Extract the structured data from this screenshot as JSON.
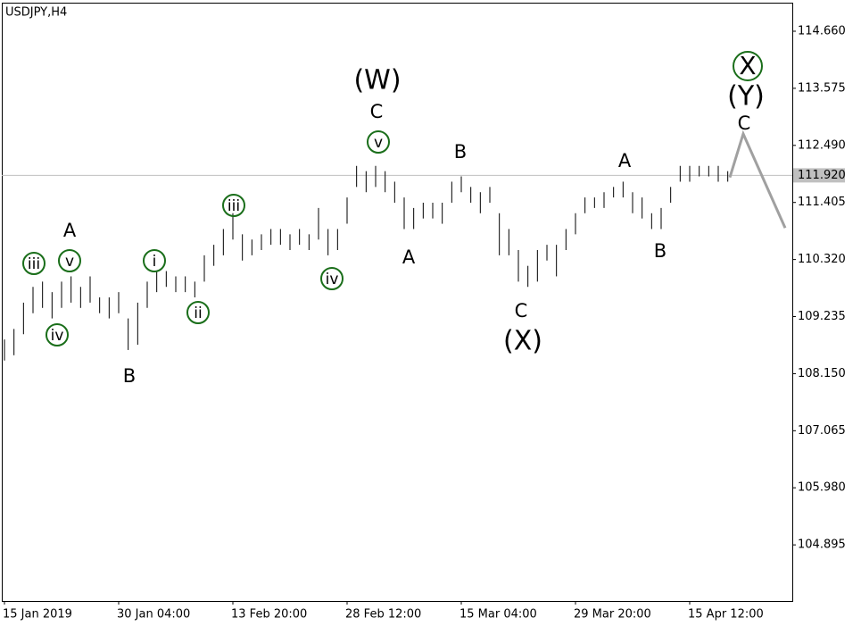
{
  "chart_data": {
    "type": "hilo",
    "title": "USDJPY,H4",
    "categories": [
      "15 Jan 2019",
      null,
      null,
      null,
      null,
      null,
      null,
      null,
      null,
      null,
      null,
      null,
      "30 Jan 04:00",
      null,
      null,
      null,
      null,
      null,
      null,
      null,
      null,
      null,
      null,
      null,
      "13 Feb 20:00",
      null,
      null,
      null,
      null,
      null,
      null,
      null,
      null,
      null,
      null,
      null,
      "28 Feb 12:00",
      null,
      null,
      null,
      null,
      null,
      null,
      null,
      null,
      null,
      null,
      null,
      "15 Mar 04:00",
      null,
      null,
      null,
      null,
      null,
      null,
      null,
      null,
      null,
      null,
      null,
      "29 Mar 20:00",
      null,
      null,
      null,
      null,
      null,
      null,
      null,
      null,
      null,
      null,
      null,
      "15 Apr 12:00",
      null,
      null,
      null,
      null
    ],
    "highs": [
      108.8,
      109.0,
      109.5,
      109.8,
      109.9,
      109.7,
      109.9,
      110.0,
      109.8,
      110.0,
      109.6,
      109.6,
      109.7,
      109.2,
      109.5,
      109.9,
      110.1,
      110.1,
      110.0,
      110.0,
      109.9,
      110.4,
      110.6,
      110.9,
      111.2,
      110.8,
      110.7,
      110.8,
      110.9,
      110.9,
      110.8,
      110.9,
      110.8,
      111.3,
      110.9,
      110.9,
      111.5,
      112.1,
      112.0,
      112.1,
      112.0,
      111.8,
      111.5,
      111.3,
      111.4,
      111.4,
      111.4,
      111.8,
      111.9,
      111.7,
      111.6,
      111.7,
      111.2,
      110.9,
      110.5,
      110.2,
      110.5,
      110.6,
      110.6,
      110.9,
      111.2,
      111.5,
      111.5,
      111.6,
      111.7,
      111.8,
      111.6,
      111.5,
      111.2,
      111.3,
      111.7,
      112.1,
      112.1,
      112.1,
      112.1,
      112.1,
      112.0
    ],
    "lows": [
      108.4,
      108.5,
      108.9,
      109.3,
      109.4,
      109.2,
      109.4,
      109.5,
      109.4,
      109.5,
      109.3,
      109.2,
      109.3,
      108.6,
      108.7,
      109.4,
      109.7,
      109.8,
      109.7,
      109.7,
      109.6,
      109.9,
      110.2,
      110.4,
      110.7,
      110.3,
      110.4,
      110.5,
      110.6,
      110.6,
      110.5,
      110.6,
      110.5,
      110.7,
      110.4,
      110.5,
      111.0,
      111.7,
      111.6,
      111.7,
      111.6,
      111.4,
      110.9,
      110.9,
      111.1,
      111.1,
      111.0,
      111.4,
      111.6,
      111.4,
      111.2,
      111.4,
      110.4,
      110.4,
      109.9,
      109.8,
      109.9,
      110.3,
      110.0,
      110.5,
      110.8,
      111.2,
      111.3,
      111.3,
      111.5,
      111.5,
      111.2,
      111.1,
      110.9,
      110.9,
      111.4,
      111.8,
      111.8,
      111.9,
      111.9,
      111.8,
      111.8
    ],
    "color": "#000000",
    "forecast": {
      "values": [
        111.88,
        112.71,
        110.92
      ],
      "color": "#a0a0a0"
    },
    "current_price": {
      "value": 111.92,
      "label": "111.920",
      "color": "#c0c0c0"
    },
    "ylim": [
      103.828,
      115.203
    ],
    "yticks": [
      {
        "value": 114.66,
        "label": "114.660"
      },
      113.575,
      {
        "value": 112.49,
        "label": "112.490"
      },
      111.405,
      {
        "value": 110.32,
        "label": "110.320"
      },
      109.235,
      {
        "value": 108.15,
        "label": "108.150"
      },
      107.065,
      {
        "value": 105.98,
        "label": "105.980"
      },
      104.895
    ],
    "annotations": [
      {
        "text": "iii",
        "color": "#1a6e1a",
        "circle": true
      },
      {
        "text": "v",
        "color": "#1a6e1a",
        "circle": true
      },
      {
        "text": "A",
        "color": "#7a0a0a",
        "circle": false
      },
      {
        "text": "iv",
        "color": "#1a6e1a",
        "circle": true
      },
      {
        "text": "B",
        "color": "#7a0a0a",
        "circle": false
      },
      {
        "text": "i",
        "color": "#1a6e1a",
        "circle": true
      },
      {
        "text": "ii",
        "color": "#1a6e1a",
        "circle": true
      },
      {
        "text": "iii",
        "color": "#1a6e1a",
        "circle": true
      },
      {
        "text": "iv",
        "color": "#1a6e1a",
        "circle": true
      },
      {
        "text": "v",
        "color": "#1a6e1a",
        "circle": true
      },
      {
        "text": "C",
        "color": "#7a0a0a",
        "circle": false
      },
      {
        "text": "(W)",
        "color": "#1a1a6e",
        "circle": false
      },
      {
        "text": "A",
        "color": "#7a0a0a",
        "circle": false
      },
      {
        "text": "B",
        "color": "#7a0a0a",
        "circle": false
      },
      {
        "text": "C",
        "color": "#7a0a0a",
        "circle": false
      },
      {
        "text": "(X)",
        "color": "#1a1a6e",
        "circle": false
      },
      {
        "text": "A",
        "color": "#7a0a0a",
        "circle": false
      },
      {
        "text": "B",
        "color": "#7a0a0a",
        "circle": false
      },
      {
        "text": "X",
        "color": "#1a6e1a",
        "circle": true
      },
      {
        "text": "(Y)",
        "color": "#1a1a6e",
        "circle": false
      },
      {
        "text": "C",
        "color": "#7a0a0a",
        "circle": false
      }
    ]
  }
}
